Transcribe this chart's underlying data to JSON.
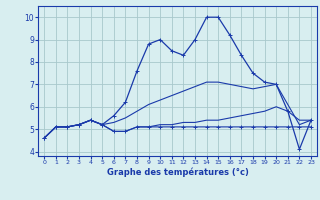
{
  "xlabel": "Graphe des températures (°c)",
  "xlim": [
    -0.5,
    23.5
  ],
  "ylim": [
    3.8,
    10.5
  ],
  "xticks": [
    0,
    1,
    2,
    3,
    4,
    5,
    6,
    7,
    8,
    9,
    10,
    11,
    12,
    13,
    14,
    15,
    16,
    17,
    18,
    19,
    20,
    21,
    22,
    23
  ],
  "yticks": [
    4,
    5,
    6,
    7,
    8,
    9,
    10
  ],
  "bg_color": "#d8eef0",
  "grid_color": "#a8c8cc",
  "line_color": "#1a3aaa",
  "lines": [
    {
      "x": [
        0,
        1,
        2,
        3,
        4,
        5,
        6,
        7,
        8,
        9,
        10,
        11,
        12,
        13,
        14,
        15,
        16,
        17,
        18,
        19,
        20,
        21,
        22,
        23
      ],
      "y": [
        4.6,
        5.1,
        5.1,
        5.2,
        5.4,
        5.2,
        4.9,
        4.9,
        5.1,
        5.1,
        5.1,
        5.1,
        5.1,
        5.1,
        5.1,
        5.1,
        5.1,
        5.1,
        5.1,
        5.1,
        5.1,
        5.1,
        5.1,
        5.1
      ],
      "marker": true,
      "linewidth": 0.8
    },
    {
      "x": [
        0,
        1,
        2,
        3,
        4,
        5,
        6,
        7,
        8,
        9,
        10,
        11,
        12,
        13,
        14,
        15,
        16,
        17,
        18,
        19,
        20,
        21,
        22,
        23
      ],
      "y": [
        4.6,
        5.1,
        5.1,
        5.2,
        5.4,
        5.2,
        4.9,
        4.9,
        5.1,
        5.1,
        5.2,
        5.2,
        5.3,
        5.3,
        5.4,
        5.4,
        5.5,
        5.6,
        5.7,
        5.8,
        6.0,
        5.8,
        5.4,
        5.4
      ],
      "marker": false,
      "linewidth": 0.8
    },
    {
      "x": [
        0,
        1,
        2,
        3,
        4,
        5,
        6,
        7,
        8,
        9,
        10,
        11,
        12,
        13,
        14,
        15,
        16,
        17,
        18,
        19,
        20,
        21,
        22,
        23
      ],
      "y": [
        4.6,
        5.1,
        5.1,
        5.2,
        5.4,
        5.2,
        5.3,
        5.5,
        5.8,
        6.1,
        6.3,
        6.5,
        6.7,
        6.9,
        7.1,
        7.1,
        7.0,
        6.9,
        6.8,
        6.9,
        7.0,
        6.1,
        5.2,
        5.4
      ],
      "marker": false,
      "linewidth": 0.8
    },
    {
      "x": [
        0,
        1,
        2,
        3,
        4,
        5,
        6,
        7,
        8,
        9,
        10,
        11,
        12,
        13,
        14,
        15,
        16,
        17,
        18,
        19,
        20,
        21,
        22,
        23
      ],
      "y": [
        4.6,
        5.1,
        5.1,
        5.2,
        5.4,
        5.2,
        5.6,
        6.2,
        7.6,
        8.8,
        9.0,
        8.5,
        8.3,
        9.0,
        10.0,
        10.0,
        9.2,
        8.3,
        7.5,
        7.1,
        7.0,
        5.8,
        4.1,
        5.4
      ],
      "marker": true,
      "linewidth": 0.9
    }
  ]
}
